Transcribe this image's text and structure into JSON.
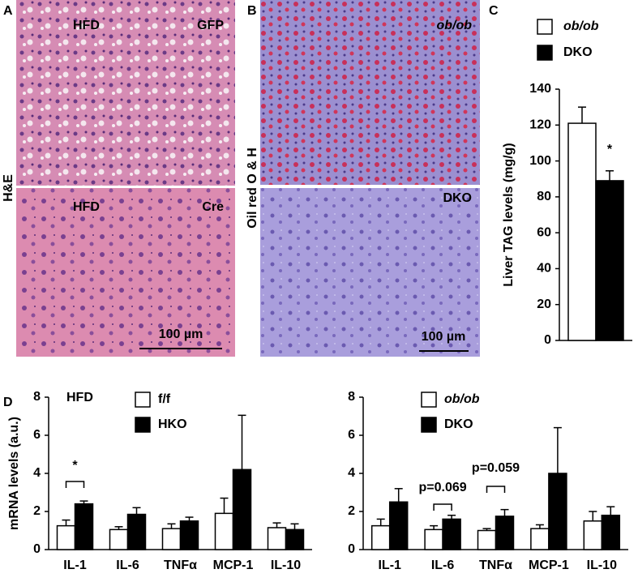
{
  "panels": {
    "A": {
      "label": "A",
      "stain": "H&E",
      "images": [
        {
          "left": "HFD",
          "right": "GFP"
        },
        {
          "left": "HFD",
          "right": "Cre",
          "scale_bar": "100 µm"
        }
      ]
    },
    "B": {
      "label": "B",
      "stain": "Oil red O & H",
      "images": [
        {
          "right": "ob/ob"
        },
        {
          "right": "DKO",
          "scale_bar": "100 µm"
        }
      ]
    },
    "C": {
      "label": "C"
    },
    "D": {
      "label": "D"
    }
  },
  "chart_data": [
    {
      "type": "bar",
      "categories": [
        null
      ],
      "ylabel": "Liver TAG levels (mg/g)",
      "ylim": [
        0,
        140
      ],
      "yticks": [
        0,
        20,
        40,
        60,
        80,
        100,
        120,
        140
      ],
      "series": [
        {
          "name": "ob/ob",
          "color": "#ffffff",
          "values": [
            121
          ],
          "errors": [
            9
          ]
        },
        {
          "name": "DKO",
          "color": "#000000",
          "values": [
            89
          ],
          "errors": [
            5.5
          ]
        }
      ],
      "annotations": [
        "*"
      ]
    },
    {
      "type": "bar",
      "title": "HFD",
      "ylabel": "mRNA levels (a.u.)",
      "categories": [
        "IL-1",
        "IL-6",
        "TNFα",
        "MCP-1",
        "IL-10"
      ],
      "ylim": [
        0,
        8
      ],
      "yticks": [
        0,
        2,
        4,
        6,
        8
      ],
      "series": [
        {
          "name": "f/f",
          "color": "#ffffff",
          "values": [
            1.25,
            1.05,
            1.1,
            1.9,
            1.15
          ],
          "errors": [
            0.3,
            0.15,
            0.25,
            0.8,
            0.25
          ]
        },
        {
          "name": "HKO",
          "color": "#000000",
          "values": [
            2.4,
            1.85,
            1.5,
            4.2,
            1.05
          ],
          "errors": [
            0.15,
            0.35,
            0.2,
            2.85,
            0.3
          ]
        }
      ],
      "annotations": [
        "*"
      ]
    },
    {
      "type": "bar",
      "categories": [
        "IL-1",
        "IL-6",
        "TNFα",
        "MCP-1",
        "IL-10"
      ],
      "ylim": [
        0,
        8
      ],
      "yticks": [
        0,
        2,
        4,
        6,
        8
      ],
      "series": [
        {
          "name": "ob/ob",
          "color": "#ffffff",
          "values": [
            1.25,
            1.05,
            1.0,
            1.1,
            1.5
          ],
          "errors": [
            0.35,
            0.2,
            0.1,
            0.2,
            0.5
          ]
        },
        {
          "name": "DKO",
          "color": "#000000",
          "values": [
            2.5,
            1.6,
            1.75,
            4.0,
            1.8
          ],
          "errors": [
            0.7,
            0.2,
            0.35,
            2.4,
            0.45
          ]
        }
      ],
      "annotations": [
        "p=0.069",
        "p=0.059"
      ]
    }
  ]
}
